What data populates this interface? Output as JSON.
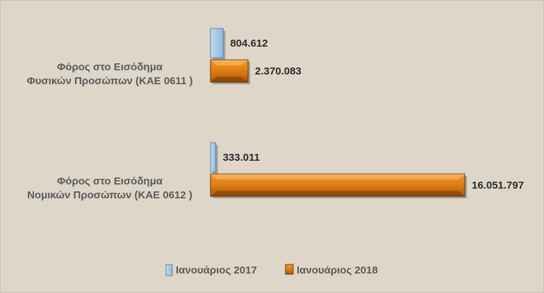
{
  "chart_data": {
    "type": "bar",
    "orientation": "horizontal",
    "categories": [
      [
        "Φόρος στο Εισόδημα",
        "Φυσικών Προσώπων (ΚΑΕ 0611 )"
      ],
      [
        "Φόρος στο Εισόδημα",
        "Νομικών Προσώπων (ΚΑΕ 0612 )"
      ]
    ],
    "series": [
      {
        "name": "Ιανουάριος 2017",
        "values": [
          804612,
          333011
        ],
        "labels": [
          "804.612",
          "333.011"
        ],
        "color": "#9dc3e6"
      },
      {
        "name": "Ιανουάριος 2018",
        "values": [
          2370083,
          16051797
        ],
        "labels": [
          "2.370.083",
          "16.051.797"
        ],
        "color": "#e07b14"
      }
    ],
    "title": "",
    "xlabel": "",
    "ylabel": "",
    "grid": false,
    "legend": "bottom",
    "background": "#ddd6c9"
  }
}
